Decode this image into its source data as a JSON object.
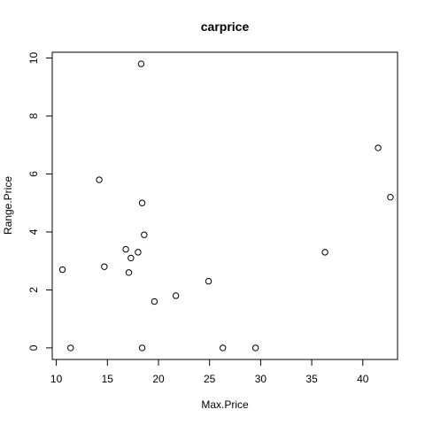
{
  "chart_data": {
    "type": "scatter",
    "title": "carprice",
    "xlabel": "Max.Price",
    "ylabel": "Range.Price",
    "xlim": [
      9.6,
      43.4
    ],
    "ylim": [
      -0.4,
      10.2
    ],
    "xticks": [
      10,
      15,
      20,
      25,
      30,
      35,
      40
    ],
    "yticks": [
      0,
      2,
      4,
      6,
      8,
      10
    ],
    "grid": false,
    "points": [
      {
        "x": 10.6,
        "y": 2.7
      },
      {
        "x": 11.4,
        "y": 0.0
      },
      {
        "x": 14.2,
        "y": 5.8
      },
      {
        "x": 14.7,
        "y": 2.8
      },
      {
        "x": 16.8,
        "y": 3.4
      },
      {
        "x": 17.1,
        "y": 2.6
      },
      {
        "x": 17.3,
        "y": 3.1
      },
      {
        "x": 18.0,
        "y": 3.3
      },
      {
        "x": 18.3,
        "y": 9.8
      },
      {
        "x": 18.4,
        "y": 5.0
      },
      {
        "x": 18.4,
        "y": 0.0
      },
      {
        "x": 18.6,
        "y": 3.9
      },
      {
        "x": 19.6,
        "y": 1.6
      },
      {
        "x": 21.7,
        "y": 1.8
      },
      {
        "x": 24.9,
        "y": 2.3
      },
      {
        "x": 26.3,
        "y": 0.0
      },
      {
        "x": 29.5,
        "y": 0.0
      },
      {
        "x": 36.3,
        "y": 3.3
      },
      {
        "x": 41.5,
        "y": 6.9
      },
      {
        "x": 42.7,
        "y": 5.2
      }
    ]
  }
}
